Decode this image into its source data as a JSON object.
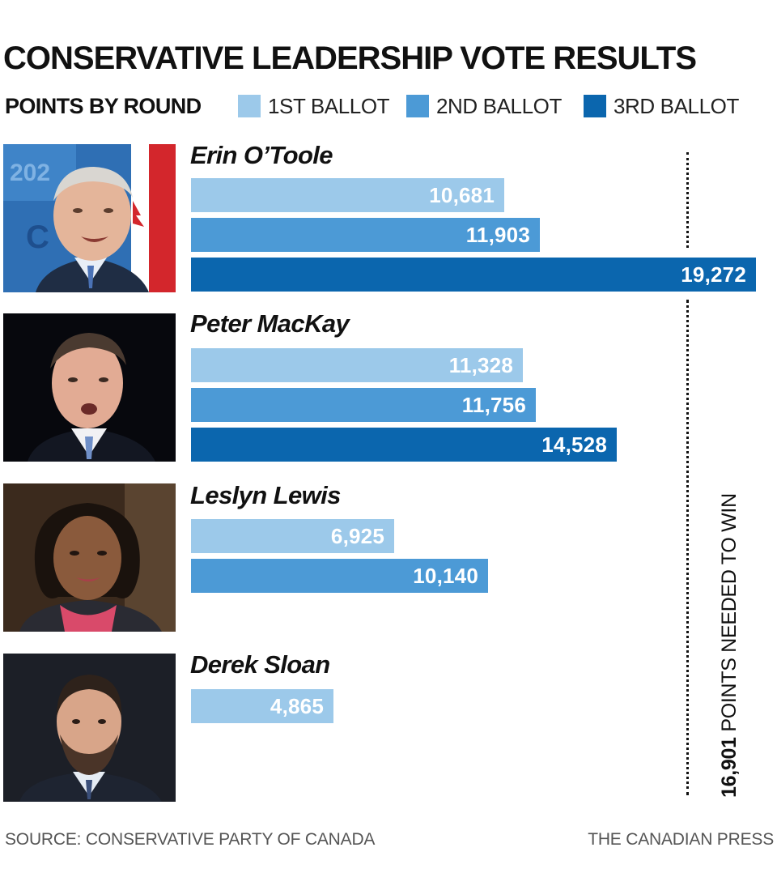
{
  "chart_data": {
    "type": "bar",
    "orientation": "horizontal",
    "title": "CONSERVATIVE LEADERSHIP VOTE RESULTS",
    "subtitle": "POINTS BY ROUND",
    "series": [
      {
        "name": "1ST BALLOT",
        "color": "#9cc9ea"
      },
      {
        "name": "2ND BALLOT",
        "color": "#4c9ad6"
      },
      {
        "name": "3RD BALLOT",
        "color": "#0b66ae"
      }
    ],
    "candidates": [
      {
        "name": "Erin O’Toole",
        "values": [
          10681,
          11903,
          19272
        ],
        "labels": [
          "10,681",
          "11,903",
          "19,272"
        ]
      },
      {
        "name": "Peter MacKay",
        "values": [
          11328,
          11756,
          14528
        ],
        "labels": [
          "11,328",
          "11,756",
          "14,528"
        ]
      },
      {
        "name": "Leslyn Lewis",
        "values": [
          6925,
          10140
        ],
        "labels": [
          "6,925",
          "10,140"
        ]
      },
      {
        "name": "Derek Sloan",
        "values": [
          4865
        ],
        "labels": [
          "4,865"
        ]
      }
    ],
    "threshold": {
      "value": 16901,
      "value_label": "16,901",
      "text": " POINTS NEEDED TO WIN"
    },
    "xlim": [
      0,
      19272
    ]
  },
  "footer": {
    "source": "SOURCE: CONSERVATIVE PARTY OF CANADA",
    "credit": "THE CANADIAN PRESS"
  }
}
